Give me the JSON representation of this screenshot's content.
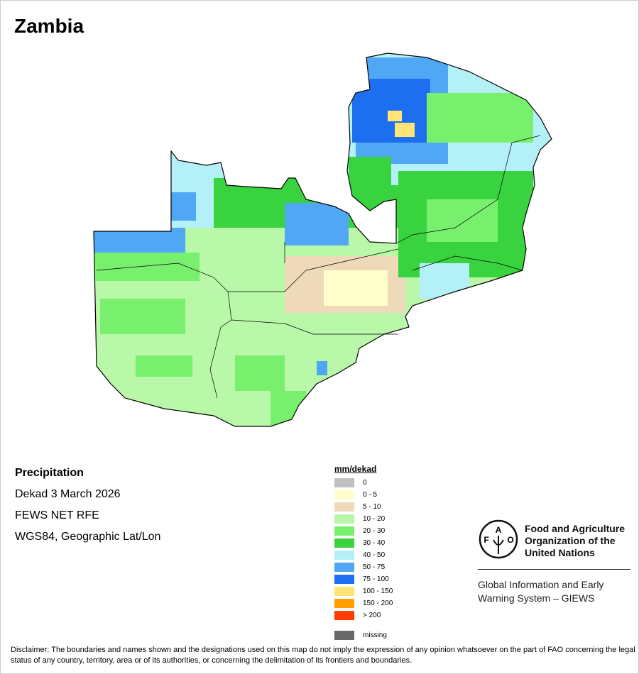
{
  "title": "Zambia",
  "info": {
    "variable": "Precipitation",
    "period": "Dekad 3 March 2026",
    "source": "FEWS NET RFE",
    "projection": "WGS84, Geographic Lat/Lon"
  },
  "legend": {
    "title": "mm/dekad",
    "items": [
      {
        "label": "0",
        "color": "#c0c0c0"
      },
      {
        "label": "0 - 5",
        "color": "#ffffcc"
      },
      {
        "label": "5 - 10",
        "color": "#eed9b9"
      },
      {
        "label": "10 - 20",
        "color": "#b8f8a8"
      },
      {
        "label": "20 - 30",
        "color": "#78f06e"
      },
      {
        "label": "30 - 40",
        "color": "#38d33e"
      },
      {
        "label": "40 - 50",
        "color": "#b4f0f8"
      },
      {
        "label": "50 - 75",
        "color": "#50a8f5"
      },
      {
        "label": "75 - 100",
        "color": "#1e6ef0"
      },
      {
        "label": "100 - 150",
        "color": "#ffe478"
      },
      {
        "label": "150 - 200",
        "color": "#ffa000"
      },
      {
        "label": "> 200",
        "color": "#ff3c00"
      }
    ],
    "missing": {
      "label": "missing",
      "color": "#686868"
    }
  },
  "logo": {
    "org": "Food and Agriculture Organization of the United Nations",
    "emblem_text": "FAO FIAT PANIS",
    "system": "Global Information and Early Warning System – GIEWS"
  },
  "disclaimer": "Disclaimer: The boundaries and names shown and the designations used on this map do not imply the expression of any opinion whatsoever on the part of FAO concerning the legal status of any country, territory, area or of its authorities, or concerning the delimitation of its frontiers and boundaries."
}
